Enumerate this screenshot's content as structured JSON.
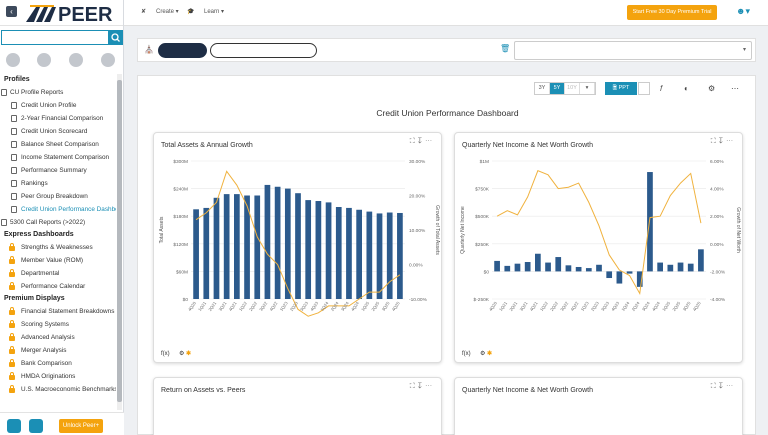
{
  "app": {
    "logo_text": "PEER"
  },
  "topbar": {
    "create": "Create",
    "learn": "Learn",
    "trial": "Start Free 30 Day Premium Trial"
  },
  "sidebar": {
    "sections": [
      {
        "title": "Profiles",
        "items": [
          {
            "label": "CU Profile Reports",
            "top": true,
            "icon": "folder-icon"
          },
          {
            "label": "Credit Union Profile",
            "icon": "document-icon"
          },
          {
            "label": "2-Year Financial Comparison",
            "icon": "document-icon"
          },
          {
            "label": "Credit Union Scorecard",
            "icon": "document-icon"
          },
          {
            "label": "Balance Sheet Comparison",
            "icon": "document-icon"
          },
          {
            "label": "Income Statement Comparison",
            "icon": "document-icon"
          },
          {
            "label": "Performance Summary",
            "icon": "document-icon"
          },
          {
            "label": "Rankings",
            "icon": "list-icon"
          },
          {
            "label": "Peer Group Breakdown",
            "icon": "chart-icon"
          },
          {
            "label": "Credit Union Performance Dashbo",
            "icon": "dashboard-icon",
            "selected": true
          },
          {
            "label": "5300 Call Reports (>2022)",
            "top": true,
            "icon": "folder-icon"
          }
        ]
      },
      {
        "title": "Express Dashboards",
        "items": [
          {
            "label": "Strengths & Weaknesses",
            "icon": "lock-icon"
          },
          {
            "label": "Member Value (ROM)",
            "icon": "lock-icon"
          },
          {
            "label": "Departmental",
            "icon": "lock-icon"
          },
          {
            "label": "Performance Calendar",
            "icon": "lock-icon"
          }
        ]
      },
      {
        "title": "Premium Displays",
        "items": [
          {
            "label": "Financial Statement Breakdowns",
            "icon": "lock-icon"
          },
          {
            "label": "Scoring Systems",
            "icon": "lock-icon"
          },
          {
            "label": "Advanced Analysis",
            "icon": "lock-icon"
          },
          {
            "label": "Merger Analysis",
            "icon": "lock-icon"
          },
          {
            "label": "Bank Comparison",
            "icon": "lock-icon"
          },
          {
            "label": "HMDA Originations",
            "icon": "lock-icon"
          },
          {
            "label": "U.S. Macroeconomic Benchmarks",
            "icon": "lock-icon"
          }
        ]
      }
    ],
    "unlock": "Unlock Peer+"
  },
  "toolbar": {
    "ranges": [
      "3Y",
      "5Y",
      "10Y"
    ],
    "active_range": "5Y",
    "ppt": "PPT"
  },
  "dashboard": {
    "title": "Credit Union Performance Dashboard"
  },
  "cards": {
    "c1": {
      "title": "Total Assets & Annual Growth"
    },
    "c2": {
      "title": "Quarterly Net Income & Net Worth Growth"
    },
    "c3": {
      "title": "Return on Assets vs. Peers"
    },
    "c4": {
      "title": "Quarterly Net Income & Net Worth Growth"
    }
  },
  "chart_data": [
    {
      "type": "bar",
      "title": "Total Assets & Annual Growth",
      "categories": [
        "4Q20",
        "1Q21",
        "2Q21",
        "3Q21",
        "4Q21",
        "1Q22",
        "2Q22",
        "3Q22",
        "4Q22",
        "1Q23",
        "2Q23",
        "3Q23",
        "4Q23",
        "1Q24",
        "2Q24",
        "3Q24",
        "4Q24",
        "1Q25",
        "2Q25",
        "3Q25",
        "4Q25"
      ],
      "series": [
        {
          "name": "Total Assets",
          "type": "bar",
          "axis": "left",
          "values": [
            195,
            198,
            220,
            228,
            228,
            225,
            225,
            248,
            244,
            240,
            230,
            215,
            213,
            210,
            200,
            198,
            194,
            190,
            186,
            188,
            187
          ]
        },
        {
          "name": "Growth of Total Assets",
          "type": "line",
          "axis": "right",
          "values": [
            13,
            15,
            18,
            27,
            23,
            17,
            8,
            3,
            0,
            -7,
            -13,
            -15,
            -14,
            -12,
            -12,
            -12,
            -10,
            -8,
            -8,
            -5,
            -3
          ]
        }
      ],
      "ylabel": "Total Assets",
      "y2label": "Growth of Total Assets",
      "ylim": [
        0,
        300
      ],
      "y2lim": [
        -10,
        30
      ],
      "yticks": [
        "$0",
        "$60M",
        "$120M",
        "$180M",
        "$240M",
        "$300M"
      ],
      "y2ticks": [
        "-10.00%",
        "0.00%",
        "10.00%",
        "20.00%",
        "30.00%"
      ],
      "grid": true
    },
    {
      "type": "bar",
      "title": "Quarterly Net Income & Net Worth Growth",
      "categories": [
        "4Q20",
        "1Q21",
        "2Q21",
        "3Q21",
        "4Q21",
        "1Q22",
        "2Q22",
        "3Q22",
        "4Q22",
        "1Q23",
        "2Q23",
        "3Q23",
        "4Q23",
        "1Q24",
        "2Q24",
        "3Q24",
        "4Q24",
        "1Q25",
        "2Q25",
        "3Q25",
        "4Q25"
      ],
      "series": [
        {
          "name": "Quarterly Net Income",
          "type": "bar",
          "axis": "left",
          "values": [
            95,
            50,
            70,
            85,
            160,
            80,
            130,
            55,
            40,
            30,
            60,
            -60,
            -110,
            -20,
            -140,
            900,
            80,
            60,
            80,
            70,
            200
          ]
        },
        {
          "name": "Net Worth Growth",
          "type": "line",
          "axis": "right",
          "values": [
            2.0,
            2.4,
            2.1,
            3.4,
            5.3,
            5.0,
            4.0,
            4.1,
            4.4,
            3.0,
            1.3,
            -0.8,
            -1.9,
            -2.3,
            -3.6,
            1.9,
            2.0,
            3.5,
            4.4,
            5.1,
            1.5
          ]
        }
      ],
      "ylabel": "Quarterly Net Income",
      "y2label": "Growth of Net Worth",
      "ylim": [
        -250,
        1000
      ],
      "y2lim": [
        -4,
        6
      ],
      "yticks": [
        "$-250K",
        "$0",
        "$250K",
        "$500K",
        "$750K",
        "$1M"
      ],
      "y2ticks": [
        "-4.00%",
        "-2.00%",
        "0.00%",
        "2.00%",
        "4.00%",
        "6.00%"
      ],
      "grid": true
    }
  ]
}
